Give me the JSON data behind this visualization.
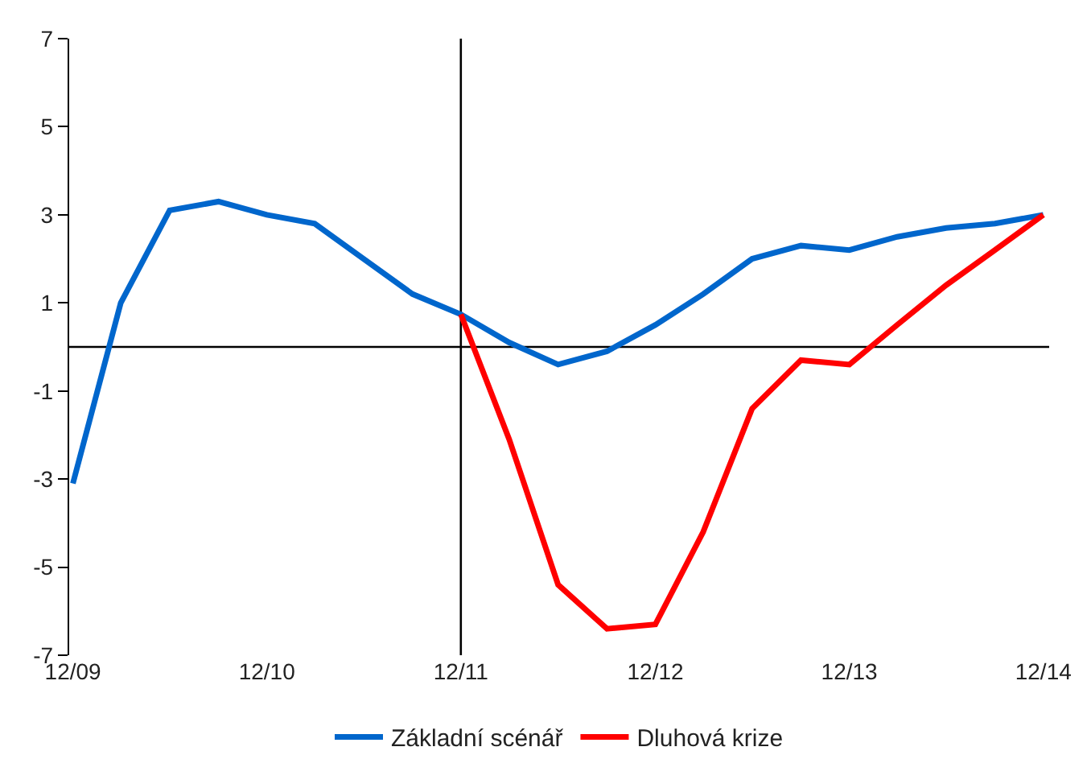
{
  "chart_data": {
    "type": "line",
    "x": [
      "2009-12",
      "2010-03",
      "2010-06",
      "2010-09",
      "2010-12",
      "2011-03",
      "2011-06",
      "2011-09",
      "2011-12",
      "2012-03",
      "2012-06",
      "2012-09",
      "2012-12",
      "2013-03",
      "2013-06",
      "2013-09",
      "2013-12",
      "2014-03",
      "2014-06",
      "2014-09",
      "2014-12"
    ],
    "series": [
      {
        "name": "Základní scénář",
        "color": "#0066cc",
        "values": [
          -3.1,
          1.0,
          3.1,
          3.3,
          3.0,
          2.8,
          2.0,
          1.2,
          0.74,
          0.1,
          -0.4,
          -0.1,
          0.5,
          1.2,
          2.0,
          2.3,
          2.2,
          2.5,
          2.7,
          2.8,
          3.0
        ]
      },
      {
        "name": "Dluhová krize",
        "color": "#ff0000",
        "x": [
          "2011-12",
          "2012-03",
          "2012-06",
          "2012-09",
          "2012-12",
          "2013-03",
          "2013-06",
          "2013-09",
          "2013-12",
          "2014-03",
          "2014-06",
          "2014-09",
          "2014-12"
        ],
        "values": [
          0.74,
          -2.1,
          -5.4,
          -6.4,
          -6.3,
          -4.2,
          -1.4,
          -0.3,
          -0.4,
          0.5,
          1.4,
          2.2,
          3.0
        ]
      }
    ],
    "xlim": [
      "2009-11-24",
      "2014-12-12"
    ],
    "xticks": [
      {
        "value": "2009-12",
        "label": "12/09"
      },
      {
        "value": "2010-12",
        "label": "12/10"
      },
      {
        "value": "2011-12",
        "label": "12/11"
      },
      {
        "value": "2012-12",
        "label": "12/12"
      },
      {
        "value": "2013-12",
        "label": "12/13"
      },
      {
        "value": "2014-12",
        "label": "12/14"
      }
    ],
    "ylim": [
      -7,
      7
    ],
    "yticks": [
      -7,
      -5,
      -3,
      -1,
      1,
      3,
      5,
      7
    ],
    "ref_lines": [
      {
        "axis": "y",
        "value": 0,
        "color": "#000000"
      },
      {
        "axis": "x",
        "value": "2011-12",
        "color": "#000000"
      }
    ],
    "grid": false,
    "legend": "bottom",
    "marker": "none",
    "line_style": "solid"
  }
}
